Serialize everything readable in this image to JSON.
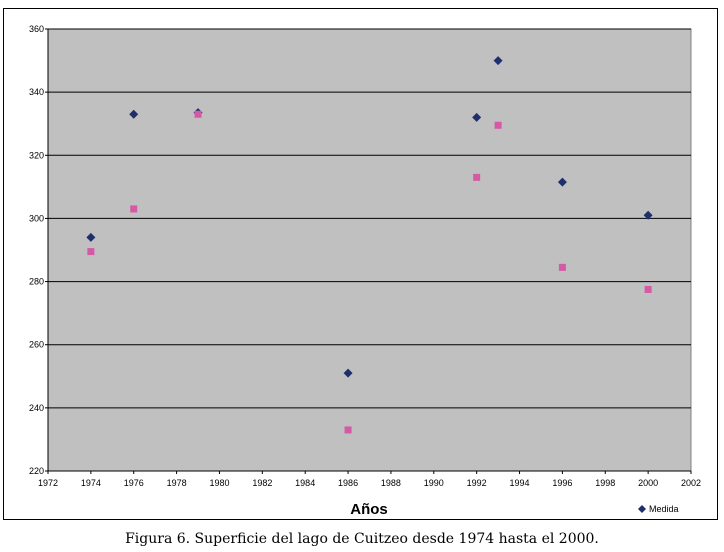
{
  "caption": "Figura 6. Superficie del lago de Cuitzeo desde 1974 hasta el 2000.",
  "chart_data": {
    "type": "scatter",
    "title": "",
    "xlabel": "Años",
    "ylabel": "",
    "xlim": [
      1972,
      2002
    ],
    "ylim": [
      220,
      360
    ],
    "x_ticks": [
      1972,
      1974,
      1976,
      1978,
      1980,
      1982,
      1984,
      1986,
      1988,
      1990,
      1992,
      1994,
      1996,
      1998,
      2000,
      2002
    ],
    "y_ticks": [
      220,
      240,
      260,
      280,
      300,
      320,
      340,
      360
    ],
    "grid": "horizontal",
    "plot_background": "#c0c0c0",
    "legend": {
      "placement": "bottom-right",
      "entries": [
        "Medida"
      ]
    },
    "series": [
      {
        "name": "Medida",
        "marker": "diamond",
        "color": "#1f2f6e",
        "points": [
          [
            1974,
            294
          ],
          [
            1976,
            333
          ],
          [
            1979,
            333.5
          ],
          [
            1986,
            251
          ],
          [
            1992,
            332
          ],
          [
            1993,
            350
          ],
          [
            1996,
            311.5
          ],
          [
            2000,
            301
          ]
        ]
      },
      {
        "marker": "square",
        "color": "#d45aa6",
        "points": [
          [
            1974,
            289.5
          ],
          [
            1976,
            303
          ],
          [
            1979,
            333
          ],
          [
            1986,
            233
          ],
          [
            1992,
            313
          ],
          [
            1993,
            329.5
          ],
          [
            1996,
            284.5
          ],
          [
            2000,
            277.5
          ]
        ]
      }
    ]
  }
}
